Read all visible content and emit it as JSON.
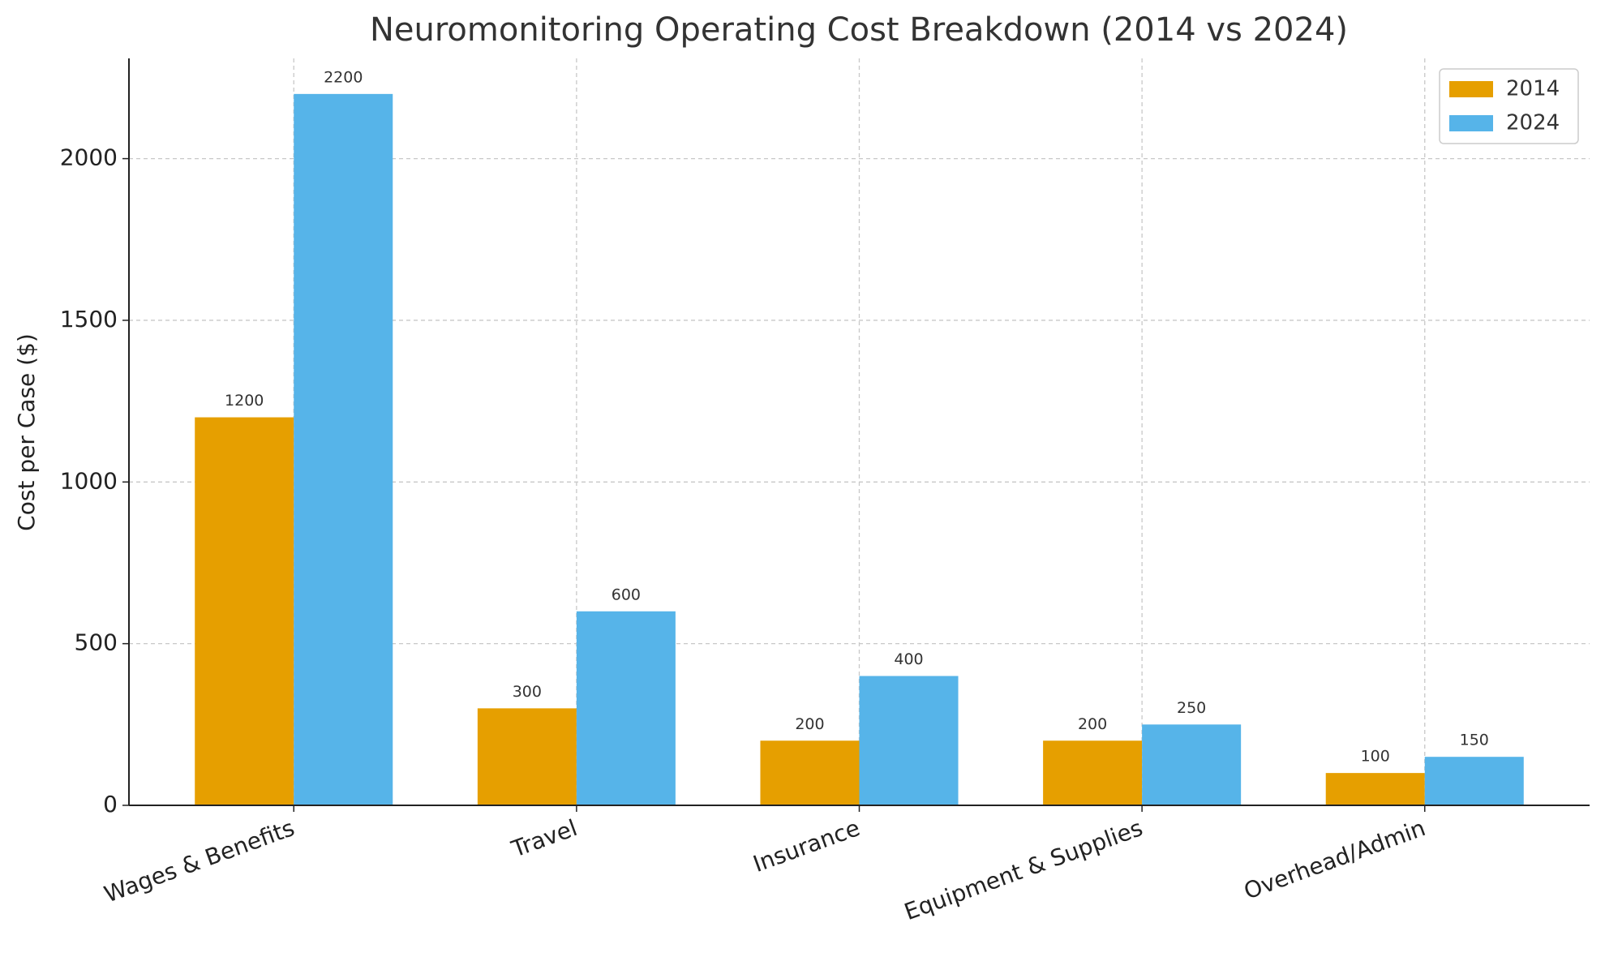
{
  "chart_data": {
    "type": "bar",
    "title": "Neuromonitoring Operating Cost Breakdown (2014 vs 2024)",
    "y_label": "Cost per Case ($)",
    "categories": [
      "Wages & Benefits",
      "Travel",
      "Insurance",
      "Equipment & Supplies",
      "Overhead/Admin"
    ],
    "series": [
      {
        "name": "2014",
        "color": "#E69F00",
        "values": [
          1200,
          300,
          200,
          200,
          100
        ]
      },
      {
        "name": "2024",
        "color": "#56B4E9",
        "values": [
          2200,
          600,
          400,
          250,
          150
        ]
      }
    ],
    "ylim": [
      0,
      2310
    ],
    "yticks": [
      0,
      500,
      1000,
      1500,
      2000
    ],
    "grid": true,
    "legend": "upper right"
  }
}
